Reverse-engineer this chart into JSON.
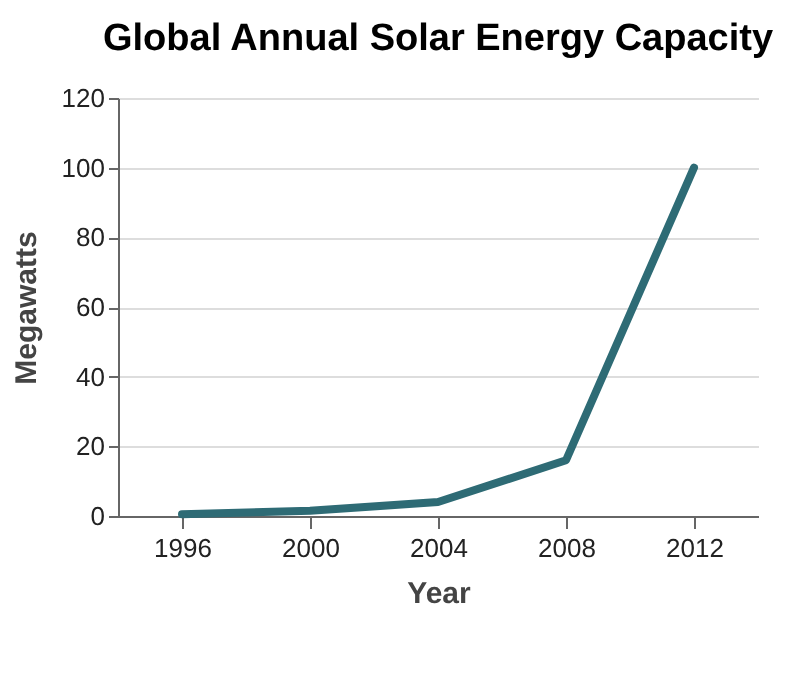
{
  "chart_data": {
    "type": "line",
    "title": "Global Annual Solar Energy Capacity",
    "xlabel": "Year",
    "ylabel": "Megawatts",
    "x": [
      1996,
      2000,
      2004,
      2008,
      2012
    ],
    "series": [
      {
        "color": "#2e6b75",
        "values": [
          0.5,
          1.5,
          4,
          16,
          100
        ]
      }
    ],
    "xlim": [
      1994,
      2014
    ],
    "xticks": [
      1996,
      2000,
      2004,
      2008,
      2012
    ],
    "ylim": [
      0,
      120
    ],
    "yticks": [
      0,
      20,
      40,
      60,
      80,
      100,
      120
    ],
    "grid": "y",
    "legend": false,
    "marker": "none",
    "line_style": "solid"
  }
}
